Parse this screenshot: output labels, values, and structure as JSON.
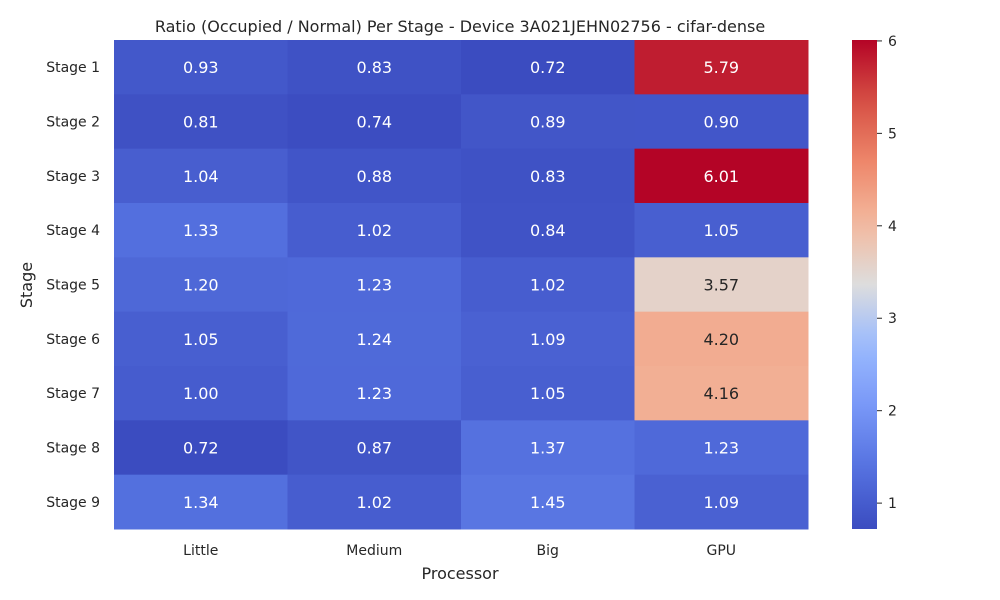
{
  "chart_data": {
    "type": "heatmap",
    "title": "Ratio (Occupied / Normal) Per Stage - Device 3A021JEHN02756 - cifar-dense",
    "xlabel": "Processor",
    "ylabel": "Stage",
    "x_categories": [
      "Little",
      "Medium",
      "Big",
      "GPU"
    ],
    "y_categories": [
      "Stage 1",
      "Stage 2",
      "Stage 3",
      "Stage 4",
      "Stage 5",
      "Stage 6",
      "Stage 7",
      "Stage 8",
      "Stage 9"
    ],
    "values": [
      [
        0.93,
        0.83,
        0.72,
        5.79
      ],
      [
        0.81,
        0.74,
        0.89,
        0.9
      ],
      [
        1.04,
        0.88,
        0.83,
        6.01
      ],
      [
        1.33,
        1.02,
        0.84,
        1.05
      ],
      [
        1.2,
        1.23,
        1.02,
        3.57
      ],
      [
        1.05,
        1.24,
        1.09,
        4.2
      ],
      [
        1.0,
        1.23,
        1.05,
        4.16
      ],
      [
        0.72,
        0.87,
        1.37,
        1.23
      ],
      [
        1.34,
        1.02,
        1.45,
        1.09
      ]
    ],
    "colormap": "coolwarm",
    "vmin": 0.72,
    "vmax": 6.01,
    "colorbar_ticks": [
      1,
      2,
      3,
      4,
      5,
      6
    ],
    "annotation_format": "0.00",
    "grid": false
  }
}
